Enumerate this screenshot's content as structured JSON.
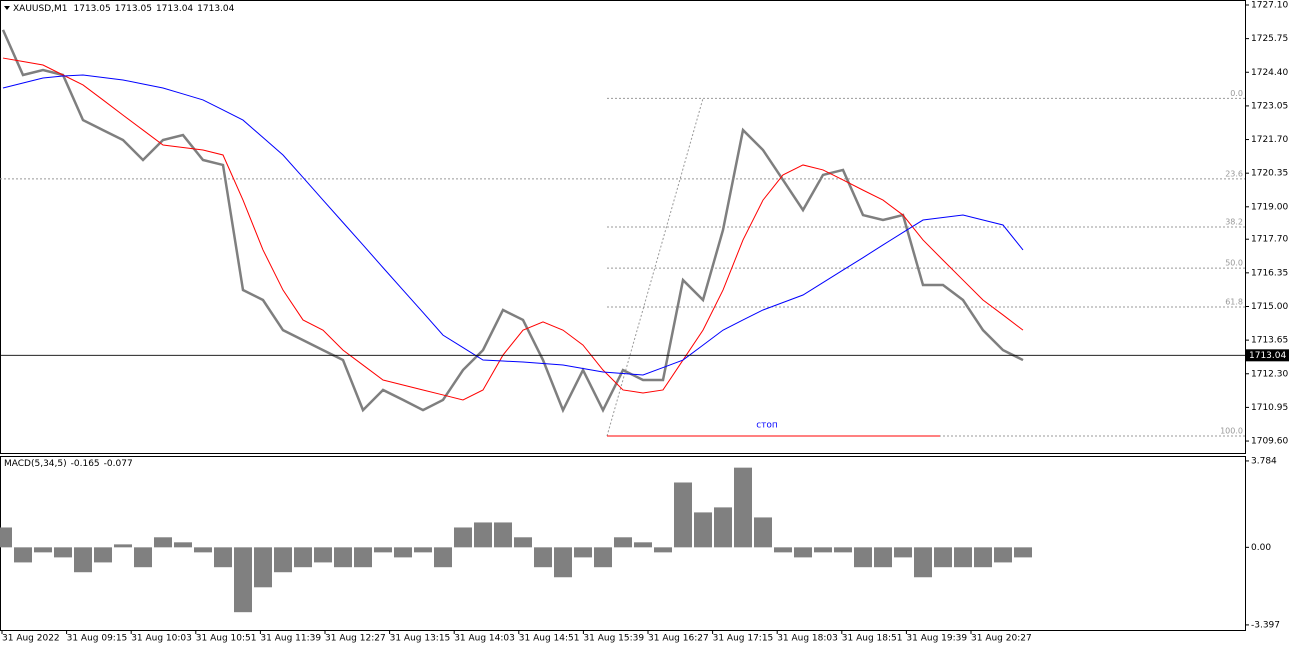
{
  "chart_data": [
    {
      "type": "line",
      "title": "XAUUSD,M1",
      "header_values": [
        1713.05,
        1713.05,
        1713.04,
        1713.04
      ],
      "series": [
        {
          "color": "#7f7f7f",
          "values": [
            1726.1,
            1724.29,
            1724.49,
            1724.29,
            1722.48,
            1722.08,
            1721.68,
            1720.88,
            1721.68,
            1721.88,
            1720.88,
            1720.68,
            1715.66,
            1715.26,
            1714.05,
            1713.65,
            1713.25,
            1712.85,
            1710.84,
            1711.65,
            1711.25,
            1710.84,
            1711.25,
            1712.45,
            1713.25,
            1714.86,
            1714.46,
            1712.85,
            1710.84,
            1712.45,
            1710.84,
            1712.45,
            1712.05,
            1712.05,
            1716.06,
            1715.26,
            1718.07,
            1722.08,
            1721.28,
            1720.08,
            1718.87,
            1720.28,
            1720.48,
            1718.67,
            1718.47,
            1718.67,
            1715.86,
            1715.86,
            1715.26,
            1714.05,
            1713.25,
            1712.85
          ]
        },
        {
          "color": "#ff0000",
          "values": [
            1724.97,
            1724.83,
            1724.69,
            1724.29,
            1723.89,
            1723.29,
            1722.68,
            1722.08,
            1721.48,
            1721.38,
            1721.28,
            1721.08,
            1719.27,
            1717.27,
            1715.66,
            1714.46,
            1714.05,
            1713.25,
            1712.65,
            1712.05,
            1711.85,
            1711.65,
            1711.45,
            1711.25,
            1711.65,
            1713.05,
            1714.05,
            1714.38,
            1714.05,
            1713.45,
            1712.45,
            1711.65,
            1711.53,
            1711.65,
            1712.85,
            1714.05,
            1715.66,
            1717.67,
            1719.27,
            1720.28,
            1720.68,
            1720.48,
            1720.08,
            1719.67,
            1719.27,
            1718.67,
            1717.67,
            1716.86,
            1716.06,
            1715.26,
            1714.66,
            1714.05
          ]
        },
        {
          "color": "#0000ff",
          "values": [
            1723.77,
            1723.97,
            1724.17,
            1724.25,
            1724.29,
            1724.19,
            1724.09,
            1723.93,
            1723.77,
            1723.53,
            1723.29,
            1722.89,
            1722.48,
            1721.78,
            1721.08,
            1720.18,
            1719.27,
            1718.37,
            1717.47,
            1716.56,
            1715.66,
            1714.76,
            1713.85,
            1713.35,
            1712.85,
            1712.81,
            1712.77,
            1712.71,
            1712.65,
            1712.51,
            1712.37,
            1712.31,
            1712.25,
            1712.55,
            1712.85,
            1713.45,
            1714.05,
            1714.46,
            1714.86,
            1715.16,
            1715.46,
            1715.96,
            1716.46,
            1716.96,
            1717.47,
            1717.97,
            1718.47,
            1718.57,
            1718.67,
            1718.47,
            1718.27,
            1717.27
          ]
        }
      ],
      "ylim": [
        1709.12,
        1727.3
      ],
      "yticks": [
        {
          "value": 1727.1,
          "label": "1727.10"
        },
        1725.75,
        {
          "value": 1724.4,
          "label": "1724.40"
        },
        1723.05,
        {
          "value": 1721.7,
          "label": "1721.70"
        },
        1720.35,
        {
          "value": 1719,
          "label": "1719.00"
        },
        {
          "value": 1717.7,
          "label": "1717.70"
        },
        1716.35,
        {
          "value": 1715,
          "label": "1715.00"
        },
        1713.65,
        {
          "value": 1712.3,
          "label": "1712.30"
        },
        1710.95,
        {
          "value": 1709.6,
          "label": "1709.60"
        }
      ],
      "current_price": 1713.04,
      "fib_levels": [
        {
          "label": "0.0",
          "value": 1723.35
        },
        {
          "label": "23.6",
          "value": 1720.12
        },
        {
          "label": "38.2",
          "value": 1718.19
        },
        {
          "label": "50.0",
          "value": 1716.54
        },
        {
          "label": "61.8",
          "value": 1714.98
        },
        {
          "label": "100.0",
          "value": 1709.8
        }
      ],
      "stop_label": "стоп",
      "stop_price": 1709.8,
      "x_tick_labels": [
        "31 Aug 2022",
        "31 Aug 09:15",
        "31 Aug 10:03",
        "31 Aug 10:51",
        "31 Aug 11:39",
        "31 Aug 12:27",
        "31 Aug 13:15",
        "31 Aug 14:03",
        "31 Aug 14:51",
        "31 Aug 15:39",
        "31 Aug 16:27",
        "31 Aug 17:15",
        "31 Aug 18:03",
        "31 Aug 18:51",
        "31 Aug 19:39",
        "31 Aug 20:27"
      ]
    },
    {
      "type": "bar",
      "title": "MACD(5,34,5)",
      "header_values": [
        -0.165,
        -0.077
      ],
      "color": "#808080",
      "values": [
        0.87,
        -0.66,
        -0.22,
        -0.44,
        -1.09,
        -0.66,
        0.13,
        -0.87,
        0.44,
        0.22,
        -0.22,
        -0.87,
        -2.84,
        -1.75,
        -1.09,
        -0.87,
        -0.66,
        -0.87,
        -0.87,
        -0.22,
        -0.44,
        -0.22,
        -0.87,
        0.87,
        1.09,
        1.09,
        0.44,
        -0.87,
        -1.31,
        -0.44,
        -0.87,
        0.44,
        0.22,
        -0.22,
        2.84,
        1.53,
        1.75,
        3.49,
        1.31,
        -0.22,
        -0.44,
        -0.22,
        -0.22,
        -0.87,
        -0.87,
        -0.44,
        -1.31,
        -0.87,
        -0.87,
        -0.87,
        -0.66,
        -0.44
      ],
      "ylim": [
        -3.62,
        4.0
      ],
      "yticks": [
        3.784,
        {
          "value": 0,
          "label": "0.00"
        },
        -3.397
      ]
    }
  ]
}
